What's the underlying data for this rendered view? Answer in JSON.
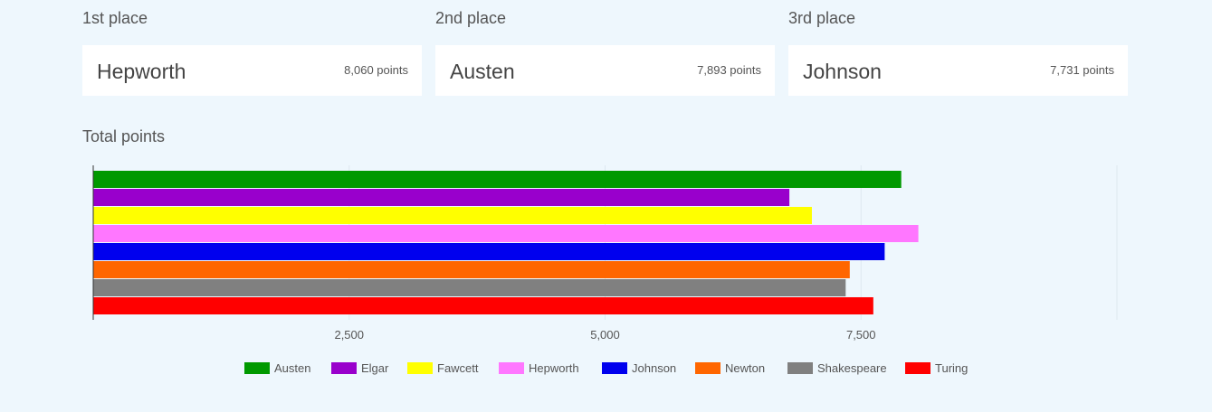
{
  "podium": [
    {
      "label": "1st place",
      "name": "Hepworth",
      "points": "8,060 points"
    },
    {
      "label": "2nd place",
      "name": "Austen",
      "points": "7,893 points"
    },
    {
      "label": "3rd place",
      "name": "Johnson",
      "points": "7,731 points"
    }
  ],
  "section_title": "Total points",
  "chart_data": {
    "type": "bar",
    "orientation": "horizontal",
    "title": "",
    "xlabel": "",
    "ylabel": "",
    "xlim": [
      0,
      10000
    ],
    "xticks": [
      2500,
      5000,
      7500
    ],
    "xtick_labels": [
      "2,500",
      "5,000",
      "7,500"
    ],
    "grid": true,
    "legend_position": "bottom",
    "series": [
      {
        "name": "Austen",
        "value": 7893,
        "color": "#009900"
      },
      {
        "name": "Elgar",
        "value": 6800,
        "color": "#9900cc"
      },
      {
        "name": "Fawcett",
        "value": 7020,
        "color": "#ffff00"
      },
      {
        "name": "Hepworth",
        "value": 8060,
        "color": "#ff77ff"
      },
      {
        "name": "Johnson",
        "value": 7731,
        "color": "#0000ee"
      },
      {
        "name": "Newton",
        "value": 7390,
        "color": "#ff6600"
      },
      {
        "name": "Shakespeare",
        "value": 7350,
        "color": "#808080"
      },
      {
        "name": "Turing",
        "value": 7620,
        "color": "#ff0000"
      }
    ]
  }
}
